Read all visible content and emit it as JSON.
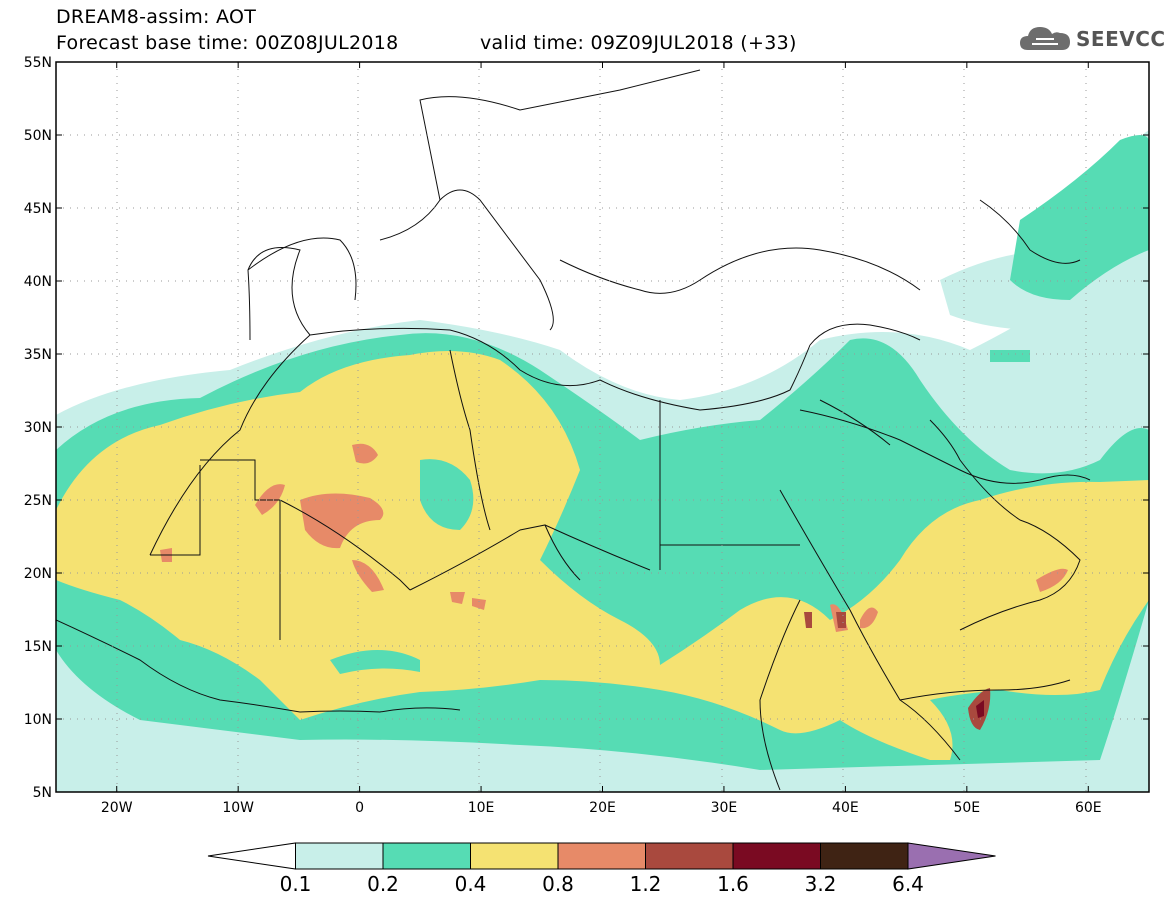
{
  "header": {
    "model_title": "DREAM8-assim: AOT",
    "base_time": "Forecast base time: 00Z08JUL2018",
    "valid_time": "valid time: 09Z09JUL2018 (+33)",
    "logo_text": "SEEVCCC"
  },
  "map": {
    "lat_labels": [
      "55N",
      "50N",
      "45N",
      "40N",
      "35N",
      "30N",
      "25N",
      "20N",
      "15N",
      "10N",
      "5N"
    ],
    "lon_labels": [
      "20W",
      "10W",
      "0",
      "10E",
      "20E",
      "30E",
      "40E",
      "50E",
      "60E"
    ],
    "lat_range": [
      5,
      55
    ],
    "lon_range": [
      -25,
      65
    ]
  },
  "colorbar": {
    "labels": [
      "0.1",
      "0.2",
      "0.4",
      "0.8",
      "1.2",
      "1.6",
      "3.2",
      "6.4"
    ],
    "colors": [
      "#ffffff",
      "#c8efe9",
      "#56dcb4",
      "#f5e272",
      "#e78a68",
      "#a9493e",
      "#7a0a22",
      "#3f2314",
      "#9a6fb0"
    ]
  },
  "colors": {
    "aot_01_02": "#c8efe9",
    "aot_02_04": "#56dcb4",
    "aot_04_08": "#f5e272",
    "aot_08_12": "#e78a68",
    "aot_12_16": "#a9493e",
    "aot_16_32": "#7a0a22"
  }
}
